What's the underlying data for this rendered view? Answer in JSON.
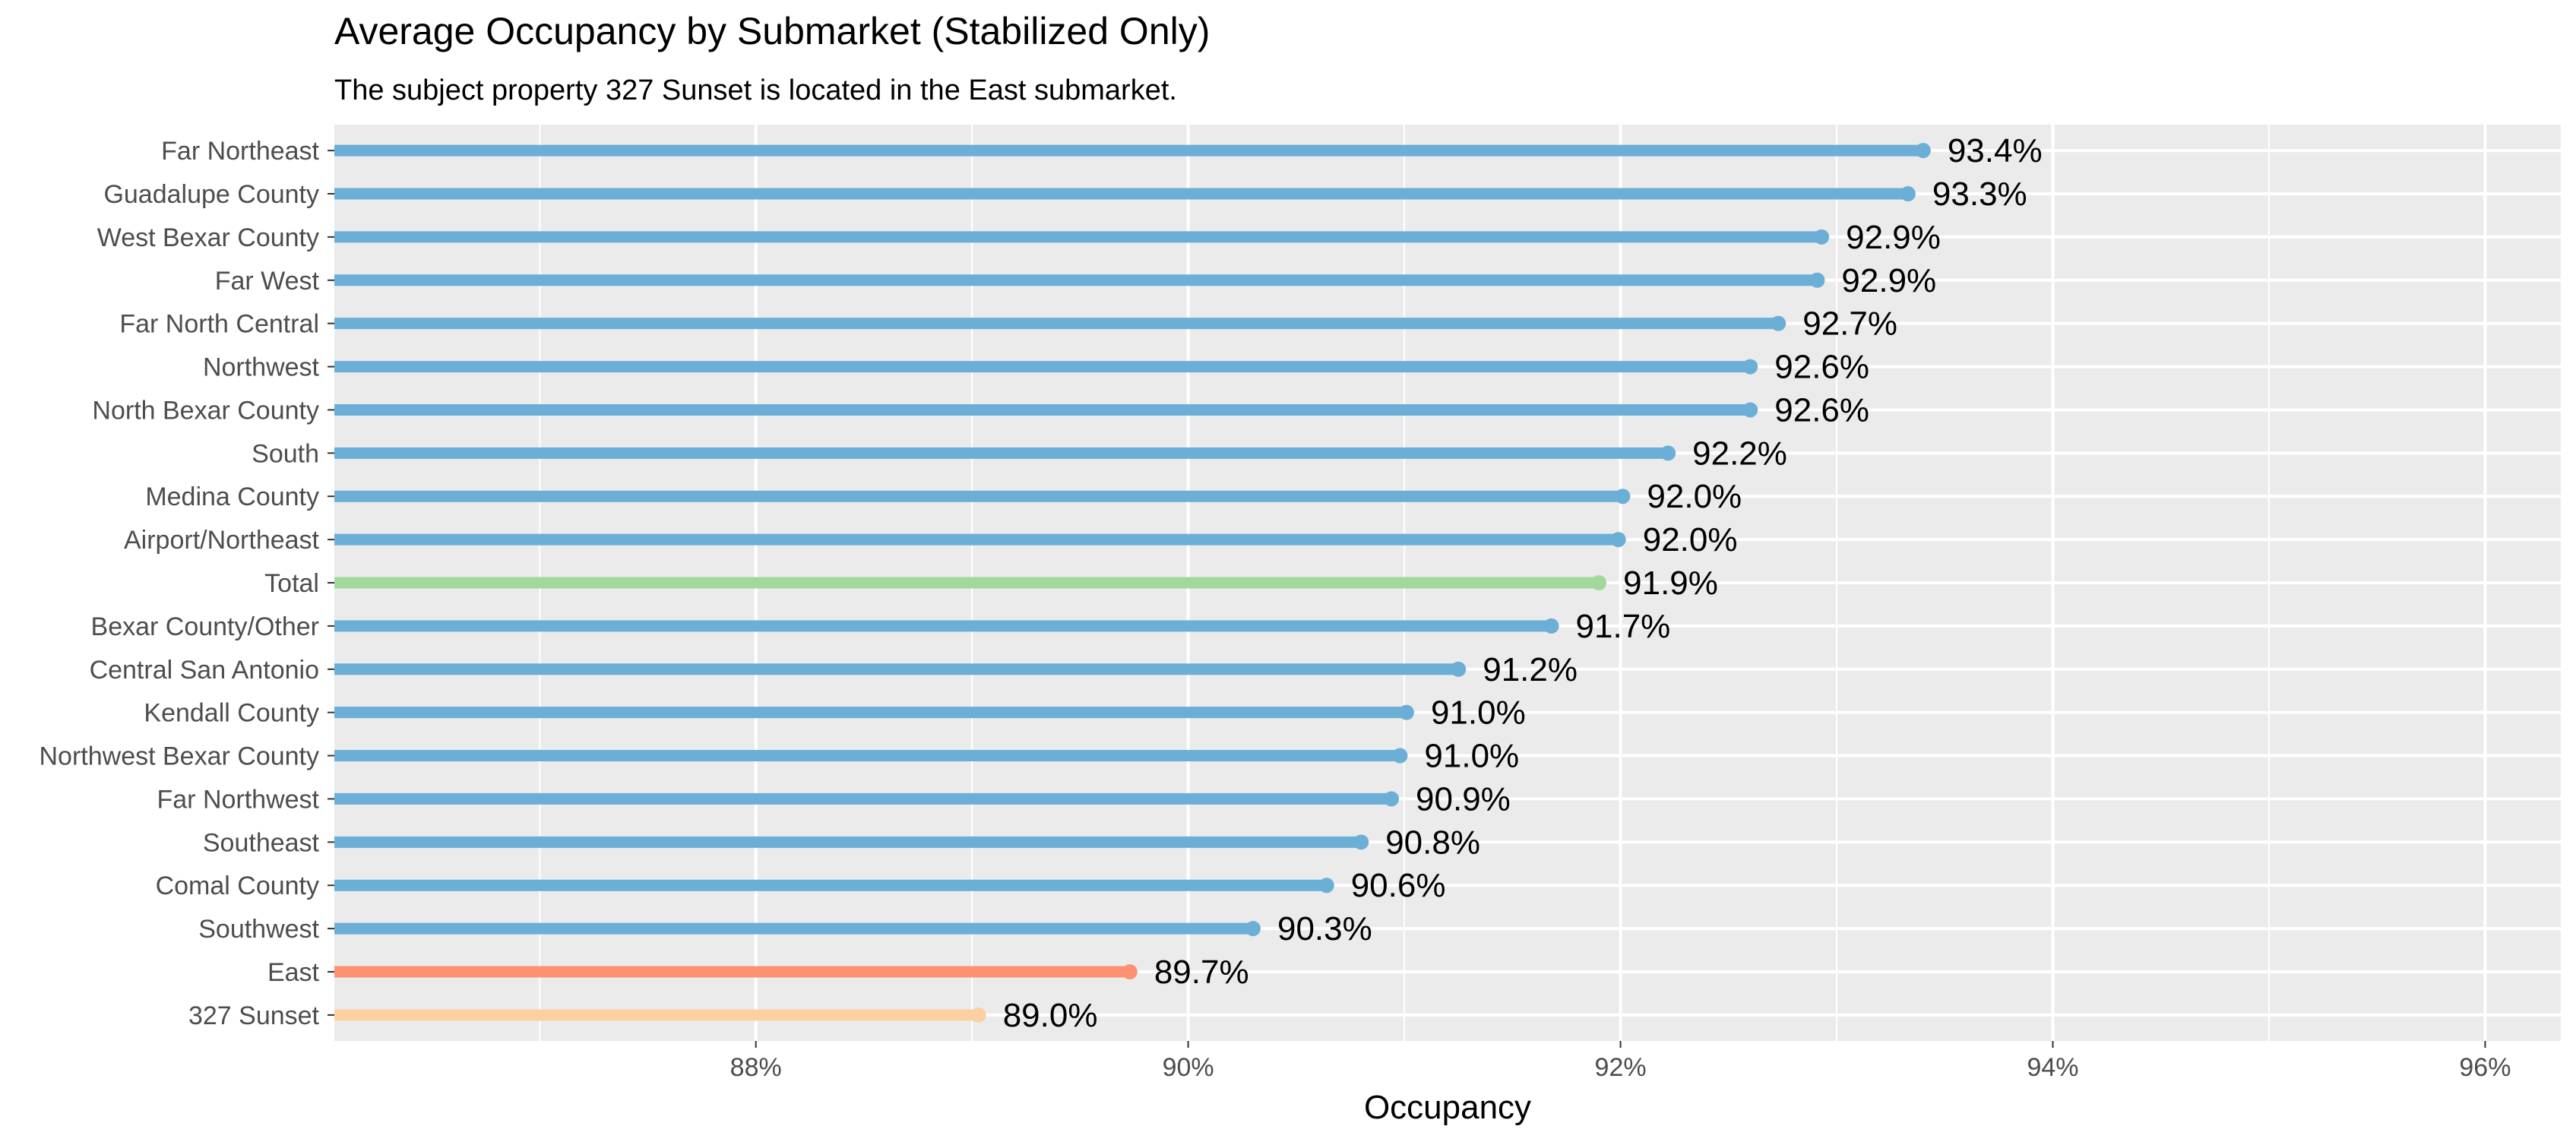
{
  "chart_data": {
    "type": "bar",
    "title": "Average Occupancy by Submarket (Stabilized Only)",
    "subtitle": "The subject property 327 Sunset is located in the East submarket.",
    "xlabel": "Occupancy",
    "ylabel": "",
    "xlim": [
      86.05,
      96.35
    ],
    "x_ticks": [
      88,
      90,
      92,
      94,
      96
    ],
    "x_tick_labels": [
      "88%",
      "90%",
      "92%",
      "94%",
      "96%"
    ],
    "grid": true,
    "legend": "none",
    "colors": {
      "default": "#6baed6",
      "total": "#a1d99b",
      "submarket": "#fc9272",
      "subject": "#fdd0a2",
      "panel": "#ebebeb",
      "grid": "#ffffff"
    },
    "series": [
      {
        "category": "Far Northeast",
        "value": 93.4,
        "label": "93.4%",
        "group": "default"
      },
      {
        "category": "Guadalupe County",
        "value": 93.33,
        "label": "93.3%",
        "group": "default"
      },
      {
        "category": "West Bexar County",
        "value": 92.93,
        "label": "92.9%",
        "group": "default"
      },
      {
        "category": "Far West",
        "value": 92.91,
        "label": "92.9%",
        "group": "default"
      },
      {
        "category": "Far North Central",
        "value": 92.73,
        "label": "92.7%",
        "group": "default"
      },
      {
        "category": "Northwest",
        "value": 92.6,
        "label": "92.6%",
        "group": "default"
      },
      {
        "category": "North Bexar County",
        "value": 92.6,
        "label": "92.6%",
        "group": "default"
      },
      {
        "category": "South",
        "value": 92.22,
        "label": "92.2%",
        "group": "default"
      },
      {
        "category": "Medina County",
        "value": 92.01,
        "label": "92.0%",
        "group": "default"
      },
      {
        "category": "Airport/Northeast",
        "value": 91.99,
        "label": "92.0%",
        "group": "default"
      },
      {
        "category": "Total",
        "value": 91.9,
        "label": "91.9%",
        "group": "total"
      },
      {
        "category": "Bexar County/Other",
        "value": 91.68,
        "label": "91.7%",
        "group": "default"
      },
      {
        "category": "Central San Antonio",
        "value": 91.25,
        "label": "91.2%",
        "group": "default"
      },
      {
        "category": "Kendall County",
        "value": 91.01,
        "label": "91.0%",
        "group": "default"
      },
      {
        "category": "Northwest Bexar County",
        "value": 90.98,
        "label": "91.0%",
        "group": "default"
      },
      {
        "category": "Far Northwest",
        "value": 90.94,
        "label": "90.9%",
        "group": "default"
      },
      {
        "category": "Southeast",
        "value": 90.8,
        "label": "90.8%",
        "group": "default"
      },
      {
        "category": "Comal County",
        "value": 90.64,
        "label": "90.6%",
        "group": "default"
      },
      {
        "category": "Southwest",
        "value": 90.3,
        "label": "90.3%",
        "group": "default"
      },
      {
        "category": "East",
        "value": 89.73,
        "label": "89.7%",
        "group": "submarket"
      },
      {
        "category": "327 Sunset",
        "value": 89.03,
        "label": "89.0%",
        "group": "subject"
      }
    ]
  }
}
